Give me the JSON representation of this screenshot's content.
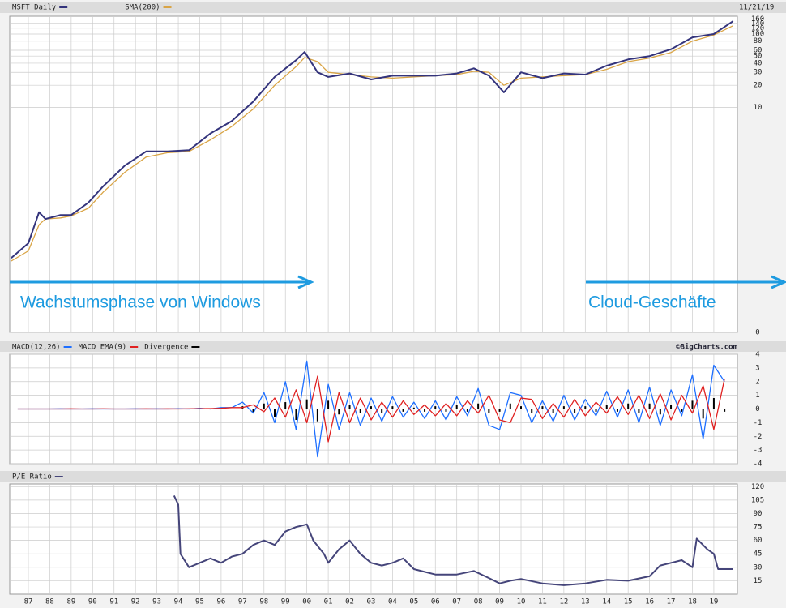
{
  "chart_data": [
    {
      "type": "line",
      "title": "MSFT Daily",
      "date": "11/21/19",
      "log_scale": true,
      "grid": true,
      "annotations": [
        "Wachstumsphase von Windows",
        "Cloud-Geschäfte"
      ],
      "x": [
        1986.2,
        1987.0,
        1987.5,
        1987.8,
        1988.5,
        1989.0,
        1989.8,
        1990.5,
        1991.5,
        1992.5,
        1993.5,
        1994.5,
        1995.5,
        1996.5,
        1997.5,
        1998.5,
        1999.5,
        1999.9,
        2000.5,
        2001.0,
        2002,
        2003,
        2004,
        2005,
        2006,
        2007,
        2007.8,
        2008.5,
        2009.2,
        2010,
        2011,
        2012,
        2013,
        2014,
        2015,
        2016,
        2017,
        2018,
        2019,
        2019.9
      ],
      "series": [
        {
          "name": "MSFT Daily",
          "color": "#34347c",
          "values": [
            0.088,
            0.14,
            0.37,
            0.3,
            0.34,
            0.34,
            0.5,
            0.84,
            1.6,
            2.5,
            2.5,
            2.6,
            4.4,
            6.5,
            12,
            26,
            44,
            57,
            30,
            26,
            29,
            24,
            27,
            27,
            27,
            29,
            34,
            27,
            16,
            30,
            25,
            29,
            28,
            37,
            45,
            50,
            62,
            90,
            100,
            150
          ]
        },
        {
          "name": "SMA(200)",
          "color": "#d9a445",
          "values": [
            0.08,
            0.11,
            0.25,
            0.3,
            0.31,
            0.33,
            0.42,
            0.7,
            1.3,
            2.1,
            2.4,
            2.5,
            3.6,
            5.5,
            9.5,
            20,
            36,
            48,
            42,
            30,
            28,
            26,
            25,
            26,
            27,
            28,
            31,
            30,
            20,
            25,
            26,
            27,
            28,
            33,
            42,
            47,
            56,
            80,
            97,
            130
          ]
        }
      ],
      "xlim": [
        1986.13,
        2020.1
      ],
      "ylim": [
        0.0085,
        175
      ],
      "yticks": [
        {
          "value": 0.0085,
          "label": "0"
        },
        10,
        20,
        30,
        40,
        50,
        60,
        80,
        100,
        120,
        140,
        160
      ]
    },
    {
      "type": "macd",
      "credit": "©BigCharts.com",
      "grid": true,
      "x": [
        1986.5,
        1987,
        1987.5,
        1988,
        1988.5,
        1989,
        1989.5,
        1990,
        1990.5,
        1991,
        1991.5,
        1992,
        1992.5,
        1993,
        1993.5,
        1994,
        1994.5,
        1995,
        1995.5,
        1996,
        1996.5,
        1997,
        1997.5,
        1998,
        1998.5,
        1999,
        1999.5,
        2000,
        2000.5,
        2001,
        2001.5,
        2002,
        2002.5,
        2003,
        2003.5,
        2004,
        2004.5,
        2005,
        2005.5,
        2006,
        2006.5,
        2007,
        2007.5,
        2008,
        2008.5,
        2009,
        2009.5,
        2010,
        2010.5,
        2011,
        2011.5,
        2012,
        2012.5,
        2013,
        2013.5,
        2014,
        2014.5,
        2015,
        2015.5,
        2016,
        2016.5,
        2017,
        2017.5,
        2018,
        2018.5,
        2019,
        2019.5
      ],
      "series": [
        {
          "name": "MACD(12,26)",
          "color": "#1e6fff",
          "values": [
            0,
            0,
            0,
            0,
            0.01,
            0,
            0,
            0.01,
            0,
            0,
            0,
            0.01,
            0,
            0.01,
            0,
            0.02,
            0,
            0.05,
            0,
            0.1,
            0.1,
            0.5,
            -0.3,
            1.2,
            -1.0,
            2.0,
            -1.5,
            3.5,
            -3.5,
            1.8,
            -1.5,
            1.2,
            -1.2,
            0.8,
            -0.9,
            0.9,
            -0.6,
            0.5,
            -0.7,
            0.6,
            -0.8,
            0.9,
            -0.5,
            1.5,
            -1.2,
            -1.5,
            1.2,
            1.0,
            -1.0,
            0.6,
            -0.9,
            1.0,
            -0.8,
            0.7,
            -0.5,
            1.3,
            -0.6,
            1.4,
            -1.0,
            1.6,
            -1.2,
            1.4,
            -0.5,
            2.5,
            -2.2,
            3.2,
            2.0
          ]
        },
        {
          "name": "MACD EMA(9)",
          "color": "#e02020",
          "values": [
            0,
            0,
            0,
            0,
            0,
            0.01,
            0,
            0,
            0.01,
            0,
            0,
            0,
            0.01,
            0,
            0.01,
            0,
            0.01,
            0.02,
            0.03,
            0.05,
            0.1,
            0.1,
            0.3,
            -0.2,
            0.8,
            -0.6,
            1.4,
            -1.0,
            2.4,
            -2.4,
            1.2,
            -1.0,
            0.8,
            -0.8,
            0.5,
            -0.6,
            0.6,
            -0.4,
            0.3,
            -0.5,
            0.4,
            -0.5,
            0.6,
            -0.3,
            1.0,
            -0.8,
            -1.0,
            0.8,
            0.7,
            -0.7,
            0.4,
            -0.6,
            0.7,
            -0.5,
            0.5,
            -0.3,
            0.9,
            -0.4,
            1.0,
            -0.7,
            1.1,
            -0.8,
            1.0,
            -0.3,
            1.7,
            -1.5,
            2.2
          ]
        },
        {
          "name": "Divergence",
          "color": "#000000",
          "values": [
            0,
            0,
            0,
            0,
            0,
            0,
            0,
            0,
            0,
            0,
            0,
            0,
            0,
            0,
            0,
            0,
            0,
            0,
            0,
            0,
            0,
            0.2,
            -0.3,
            0.4,
            -0.6,
            0.5,
            -0.8,
            0.7,
            -0.9,
            0.6,
            -0.4,
            0.3,
            -0.3,
            0.2,
            -0.3,
            0.2,
            -0.2,
            0.1,
            -0.2,
            0.2,
            -0.2,
            0.3,
            -0.2,
            0.4,
            -0.3,
            -0.2,
            0.4,
            0.2,
            -0.3,
            0.2,
            -0.3,
            0.2,
            -0.3,
            0.2,
            -0.2,
            0.3,
            -0.2,
            0.4,
            -0.3,
            0.4,
            -0.4,
            0.3,
            -0.2,
            0.6,
            -0.7,
            0.8,
            -0.2
          ]
        }
      ],
      "xlim": [
        1986.13,
        2020.1
      ],
      "ylim": [
        -4,
        4
      ],
      "yticks": [
        -4,
        -3,
        -2,
        -1,
        0,
        1,
        2,
        3,
        4
      ]
    },
    {
      "type": "line",
      "grid": true,
      "x": [
        1993.8,
        1994.0,
        1994.1,
        1994.5,
        1995,
        1995.5,
        1996,
        1996.5,
        1997,
        1997.5,
        1998,
        1998.5,
        1999,
        1999.5,
        2000,
        2000.3,
        2000.8,
        2001,
        2001.5,
        2002,
        2002.5,
        2003,
        2003.5,
        2004,
        2004.5,
        2005,
        2005.5,
        2006,
        2007,
        2007.8,
        2008.5,
        2009,
        2009.5,
        2010,
        2011,
        2012,
        2013,
        2014,
        2015,
        2016,
        2016.5,
        2017,
        2017.5,
        2018,
        2018.2,
        2018.7,
        2019,
        2019.2,
        2019.9
      ],
      "series": [
        {
          "name": "P/E Ratio",
          "color": "#45457a",
          "values": [
            110,
            100,
            45,
            30,
            35,
            40,
            35,
            42,
            45,
            55,
            60,
            55,
            70,
            75,
            78,
            60,
            45,
            35,
            50,
            60,
            45,
            35,
            32,
            35,
            40,
            28,
            25,
            22,
            22,
            26,
            18,
            12,
            15,
            17,
            12,
            10,
            12,
            16,
            15,
            20,
            32,
            35,
            38,
            30,
            62,
            50,
            45,
            28,
            28
          ]
        }
      ],
      "xlim": [
        1986.13,
        2020.1
      ],
      "ylim": [
        0,
        123
      ],
      "yticks": [
        15,
        30,
        45,
        60,
        75,
        90,
        105,
        120
      ],
      "xticks": [
        {
          "value": 1987,
          "label": "87"
        },
        {
          "value": 1988,
          "label": "88"
        },
        {
          "value": 1989,
          "label": "89"
        },
        {
          "value": 1990,
          "label": "90"
        },
        {
          "value": 1991,
          "label": "91"
        },
        {
          "value": 1992,
          "label": "92"
        },
        {
          "value": 1993,
          "label": "93"
        },
        {
          "value": 1994,
          "label": "94"
        },
        {
          "value": 1995,
          "label": "95"
        },
        {
          "value": 1996,
          "label": "96"
        },
        {
          "value": 1997,
          "label": "97"
        },
        {
          "value": 1998,
          "label": "98"
        },
        {
          "value": 1999,
          "label": "99"
        },
        {
          "value": 2000,
          "label": "00"
        },
        {
          "value": 2001,
          "label": "01"
        },
        {
          "value": 2002,
          "label": "02"
        },
        {
          "value": 2003,
          "label": "03"
        },
        {
          "value": 2004,
          "label": "04"
        },
        {
          "value": 2005,
          "label": "05"
        },
        {
          "value": 2006,
          "label": "06"
        },
        {
          "value": 2007,
          "label": "07"
        },
        {
          "value": 2008,
          "label": "08"
        },
        {
          "value": 2009,
          "label": "09"
        },
        {
          "value": 2010,
          "label": "10"
        },
        {
          "value": 2011,
          "label": "11"
        },
        {
          "value": 2012,
          "label": "12"
        },
        {
          "value": 2013,
          "label": "13"
        },
        {
          "value": 2014,
          "label": "14"
        },
        {
          "value": 2015,
          "label": "15"
        },
        {
          "value": 2016,
          "label": "16"
        },
        {
          "value": 2017,
          "label": "17"
        },
        {
          "value": 2018,
          "label": "18"
        },
        {
          "value": 2019,
          "label": "19"
        }
      ]
    }
  ]
}
